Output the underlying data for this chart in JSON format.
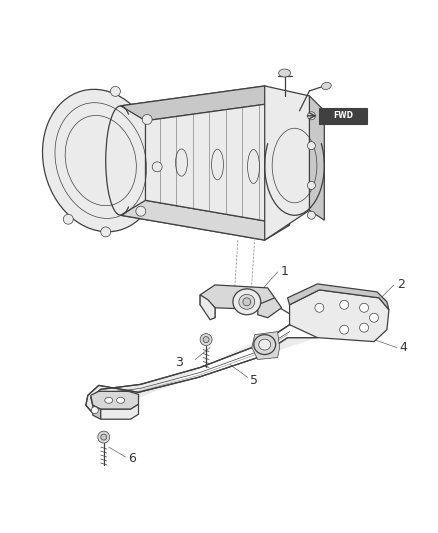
{
  "background_color": "#ffffff",
  "line_color": "#404040",
  "label_color": "#333333",
  "figsize": [
    4.38,
    5.33
  ],
  "dpi": 100,
  "note_text": "FWD",
  "lw_main": 0.9,
  "lw_thin": 0.5,
  "lw_heavy": 1.3,
  "fill_gray": "#d8d8d8",
  "fill_light": "#ebebeb",
  "fill_mid": "#c8c8c8"
}
